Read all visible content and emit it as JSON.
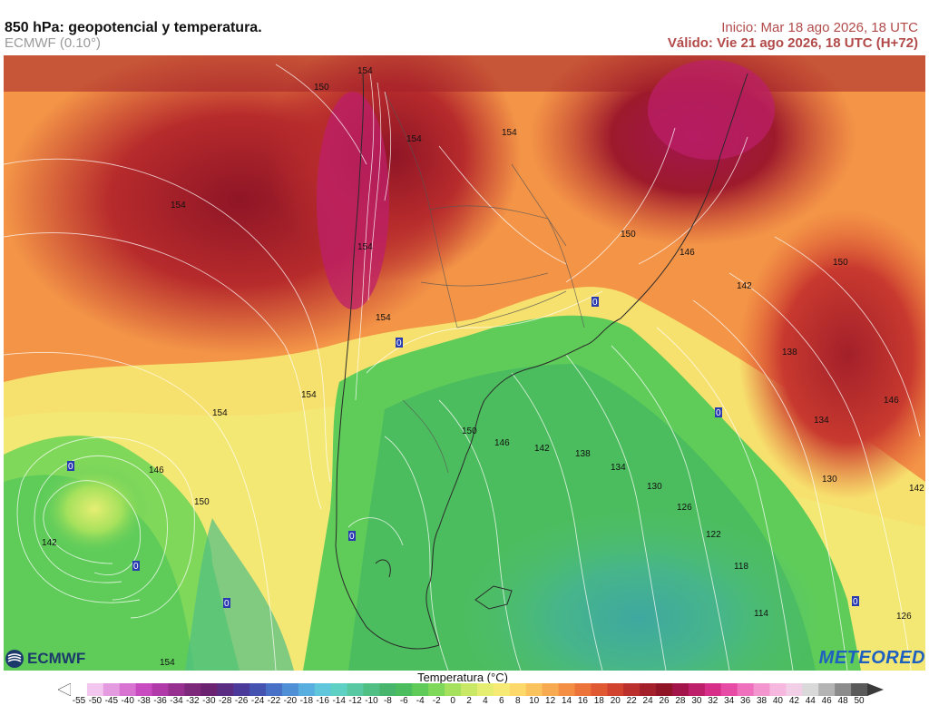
{
  "header": {
    "title": "850 hPa: geopotencial y temperatura.",
    "model": "ECMWF (0.10°)",
    "run": "Inicio: Mar 18 ago 2026, 18 UTC",
    "valid": "Válido: Vie 21 ago 2026, 18 UTC (H+72)"
  },
  "logos": {
    "ecmwf": "ECMWF",
    "meteored": "METEORED"
  },
  "legend": {
    "title": "Temperatura (°C)",
    "ticks": [
      "-55",
      "-50",
      "-45",
      "-40",
      "-38",
      "-36",
      "-34",
      "-32",
      "-30",
      "-28",
      "-26",
      "-24",
      "-22",
      "-20",
      "-18",
      "-16",
      "-14",
      "-12",
      "-10",
      "-8",
      "-6",
      "-4",
      "-2",
      "0",
      "2",
      "4",
      "6",
      "8",
      "10",
      "12",
      "14",
      "16",
      "18",
      "20",
      "22",
      "24",
      "26",
      "28",
      "30",
      "32",
      "34",
      "36",
      "38",
      "40",
      "42",
      "44",
      "46",
      "48",
      "50"
    ],
    "colors": [
      "#ffffff",
      "#f2c6ee",
      "#e59be0",
      "#d873d2",
      "#c84cc0",
      "#b03aa8",
      "#973091",
      "#7e287b",
      "#6b2270",
      "#5a2d82",
      "#4b3a99",
      "#4452b0",
      "#4870c6",
      "#4f8fd6",
      "#57aedf",
      "#5fc6dc",
      "#5fd1c4",
      "#58c9a2",
      "#4fbf83",
      "#48b56c",
      "#4cbd5e",
      "#5fcc5a",
      "#80d85a",
      "#a5e15c",
      "#c9e865",
      "#e6ee72",
      "#f6ea74",
      "#fcd96a",
      "#fbc35e",
      "#f8aa51",
      "#f48e45",
      "#ec733a",
      "#e15933",
      "#d1432f",
      "#bb2f2c",
      "#a3202a",
      "#8f1526",
      "#a3154a",
      "#be1f6a",
      "#d72e8a",
      "#e74ba6",
      "#ef70bd",
      "#f396cf",
      "#f6b8de",
      "#f2cfe6",
      "#d9d9d9",
      "#b3b3b3",
      "#8c8c8c",
      "#5a5a5a"
    ]
  },
  "map": {
    "geopotential_labels": [
      "154",
      "150",
      "154",
      "154",
      "154",
      "154",
      "154",
      "154",
      "146",
      "150",
      "142",
      "154",
      "150",
      "146",
      "142",
      "138",
      "134",
      "130",
      "126",
      "122",
      "118",
      "114",
      "150",
      "146",
      "142",
      "150",
      "138",
      "146",
      "134",
      "130",
      "142",
      "126"
    ],
    "freezing_labels": [
      "0",
      "0",
      "0",
      "0",
      "0",
      "0",
      "0",
      "0",
      "0"
    ]
  }
}
